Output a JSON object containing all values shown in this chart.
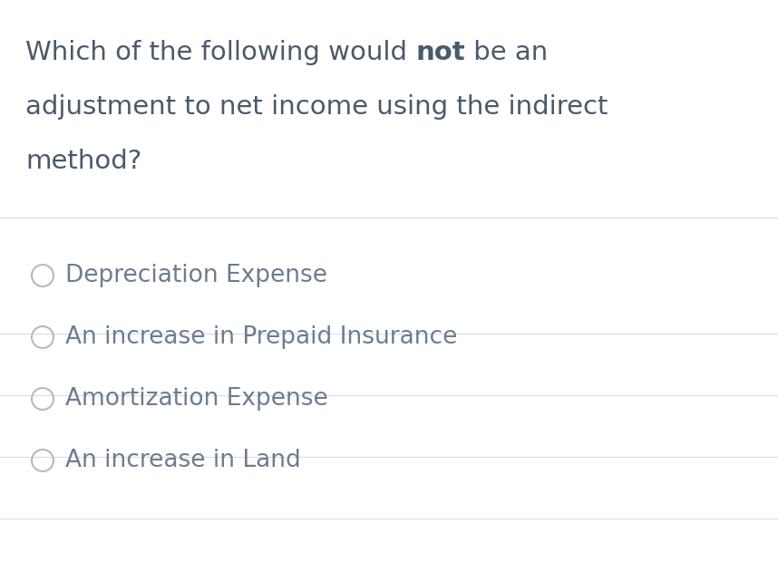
{
  "background_color": "#ffffff",
  "question_text_color": "#4a5a6a",
  "question_fontsize": 21,
  "options": [
    "Depreciation Expense",
    "An increase in Prepaid Insurance",
    "Amortization Expense",
    "An increase in Land"
  ],
  "option_text_color": "#6b7d8f",
  "option_fontsize": 19,
  "circle_color": "#b0bbc5",
  "divider_color": "#d8dde2",
  "divider_linewidth": 0.8,
  "fig_width": 8.58,
  "fig_height": 6.2,
  "fig_dpi": 100
}
